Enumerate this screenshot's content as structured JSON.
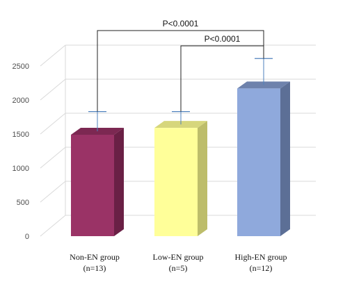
{
  "chart_data": {
    "type": "bar",
    "categories": [
      {
        "name": "Non-EN group",
        "n": "(n=13)"
      },
      {
        "name": "Low-EN group",
        "n": "(n=5)"
      },
      {
        "name": "High-EN group",
        "n": "(n=12)"
      }
    ],
    "values": [
      1490,
      1590,
      2170
    ],
    "error_upper": [
      1830,
      1830,
      2610
    ],
    "ylim": [
      0,
      2500
    ],
    "yticks": [
      "0",
      "500",
      "1000",
      "1500",
      "2000",
      "2500"
    ],
    "colors": {
      "bars": [
        "#9a3366",
        "#ffff99",
        "#8fa9dc"
      ],
      "bar_sides": [
        "#6a2045",
        "#bdbd6a",
        "#5c6f96"
      ],
      "bar_tops": [
        "#7c2852",
        "#d6d67c",
        "#6e82ac"
      ],
      "error": "#4f81bd",
      "grid": "#d9d9d9",
      "bracket": "#222222"
    },
    "annotations": [
      {
        "text": "P<0.0001",
        "from": 0,
        "to": 2
      },
      {
        "text": "P<0.0001",
        "from": 1,
        "to": 2
      }
    ],
    "grid": true,
    "style": "3d-column"
  }
}
